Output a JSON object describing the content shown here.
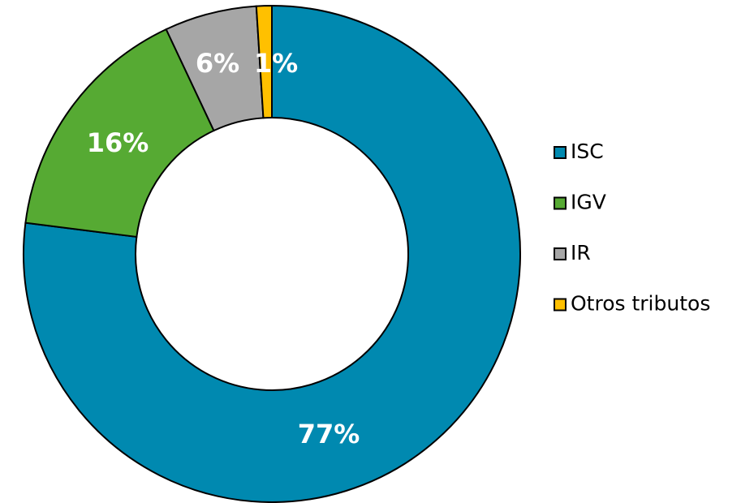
{
  "chart_data": {
    "type": "donut",
    "categories": [
      "ISC",
      "IGV",
      "IR",
      "Otros tributos"
    ],
    "values": [
      77,
      16,
      6,
      1
    ],
    "value_labels": [
      "77%",
      "16%",
      "6%",
      "1%"
    ],
    "colors": [
      "#0089B0",
      "#56AA33",
      "#A6A6A6",
      "#FFC000"
    ],
    "legend": "right"
  }
}
